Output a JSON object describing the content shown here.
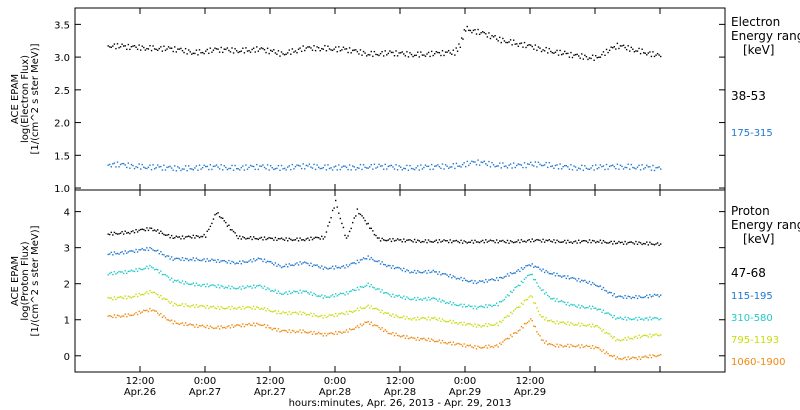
{
  "chart_data": [
    {
      "type": "scatter",
      "ylabel": [
        "ACE EPAM",
        "log(Electron Flux)",
        "[1/(cm^2 s ster MeV)]"
      ],
      "ylim": [
        0.97,
        3.75
      ],
      "yticks": [
        "1.0",
        "1.5",
        "2.0",
        "2.5",
        "3.0",
        "3.5"
      ],
      "ytick_values": [
        1.0,
        1.5,
        2.0,
        2.5,
        3.0,
        3.5
      ],
      "legend_title": [
        "Electron",
        "Energy range",
        "[keV]"
      ],
      "series": [
        {
          "name": "38-53",
          "color": "#000000",
          "x": [
            6,
            10,
            14,
            18,
            22,
            26,
            30,
            34,
            38,
            42,
            46,
            50,
            54,
            58,
            62,
            66,
            70,
            71,
            72,
            74,
            76,
            78,
            80,
            84,
            88,
            92,
            96,
            100,
            104,
            108
          ],
          "y": [
            3.19,
            3.16,
            3.15,
            3.13,
            3.08,
            3.12,
            3.11,
            3.13,
            3.06,
            3.14,
            3.15,
            3.12,
            3.06,
            3.07,
            3.05,
            3.06,
            3.08,
            3.2,
            3.45,
            3.4,
            3.35,
            3.28,
            3.25,
            3.17,
            3.1,
            3.03,
            3.0,
            3.18,
            3.11,
            3.02
          ]
        },
        {
          "name": "175-315",
          "color": "#1f77d0",
          "x": [
            6,
            10,
            14,
            18,
            22,
            26,
            30,
            34,
            38,
            42,
            46,
            50,
            54,
            58,
            62,
            66,
            70,
            74,
            78,
            82,
            86,
            90,
            94,
            98,
            102,
            106,
            108
          ],
          "y": [
            1.38,
            1.35,
            1.33,
            1.31,
            1.32,
            1.33,
            1.32,
            1.33,
            1.32,
            1.34,
            1.33,
            1.32,
            1.34,
            1.33,
            1.32,
            1.33,
            1.35,
            1.4,
            1.36,
            1.35,
            1.38,
            1.33,
            1.32,
            1.33,
            1.34,
            1.32,
            1.3
          ]
        }
      ]
    },
    {
      "type": "scatter",
      "ylabel": [
        "ACE EPAM",
        "log(Proton Flux)",
        "[1/(cm^2 s ster MeV)]"
      ],
      "ylim": [
        -0.45,
        4.6
      ],
      "yticks": [
        "0",
        "1",
        "2",
        "3",
        "4"
      ],
      "ytick_values": [
        0,
        1,
        2,
        3,
        4
      ],
      "legend_title": [
        "Proton",
        "Energy range",
        "[keV]"
      ],
      "series": [
        {
          "name": "47-68",
          "color": "#000000",
          "x": [
            6,
            10,
            14,
            18,
            20,
            24,
            26,
            30,
            34,
            38,
            42,
            46,
            48,
            50,
            52,
            56,
            60,
            64,
            68,
            72,
            76,
            80,
            84,
            88,
            92,
            96,
            100,
            104,
            108
          ],
          "y": [
            3.4,
            3.45,
            3.55,
            3.3,
            3.3,
            3.35,
            4.0,
            3.3,
            3.28,
            3.25,
            3.25,
            3.3,
            4.3,
            3.25,
            4.05,
            3.25,
            3.22,
            3.2,
            3.2,
            3.18,
            3.2,
            3.18,
            3.22,
            3.2,
            3.18,
            3.2,
            3.15,
            3.15,
            3.12
          ]
        },
        {
          "name": "115-195",
          "color": "#1f77d0",
          "x": [
            6,
            10,
            14,
            18,
            22,
            26,
            30,
            34,
            38,
            42,
            46,
            50,
            54,
            58,
            62,
            66,
            70,
            74,
            78,
            82,
            84,
            86,
            88,
            92,
            96,
            100,
            104,
            108
          ],
          "y": [
            2.85,
            2.9,
            3.0,
            2.7,
            2.7,
            2.65,
            2.6,
            2.7,
            2.5,
            2.6,
            2.45,
            2.5,
            2.75,
            2.5,
            2.35,
            2.35,
            2.2,
            2.05,
            2.15,
            2.4,
            2.55,
            2.4,
            2.3,
            2.15,
            2.0,
            1.65,
            1.65,
            1.7
          ]
        },
        {
          "name": "310-580",
          "color": "#22c9c9",
          "x": [
            6,
            10,
            14,
            18,
            22,
            26,
            30,
            34,
            38,
            42,
            46,
            50,
            54,
            58,
            62,
            66,
            70,
            74,
            78,
            82,
            84,
            86,
            88,
            92,
            96,
            100,
            104,
            108
          ],
          "y": [
            2.3,
            2.35,
            2.5,
            2.1,
            2.0,
            1.95,
            1.9,
            1.95,
            1.75,
            1.8,
            1.65,
            1.75,
            2.0,
            1.7,
            1.6,
            1.6,
            1.45,
            1.35,
            1.45,
            2.0,
            2.3,
            1.85,
            1.6,
            1.4,
            1.35,
            1.05,
            1.05,
            1.05
          ]
        },
        {
          "name": "795-1193",
          "color": "#c8dc10",
          "x": [
            6,
            10,
            14,
            18,
            22,
            26,
            30,
            34,
            38,
            42,
            46,
            50,
            54,
            58,
            62,
            66,
            70,
            74,
            78,
            82,
            84,
            86,
            88,
            92,
            96,
            100,
            104,
            108
          ],
          "y": [
            1.6,
            1.65,
            1.8,
            1.45,
            1.4,
            1.35,
            1.35,
            1.35,
            1.2,
            1.2,
            1.1,
            1.2,
            1.4,
            1.15,
            1.05,
            1.05,
            0.95,
            0.85,
            0.9,
            1.4,
            1.7,
            1.1,
            0.95,
            0.9,
            0.85,
            0.45,
            0.55,
            0.6
          ]
        },
        {
          "name": "1060-1900",
          "color": "#f08a10",
          "x": [
            6,
            10,
            14,
            18,
            22,
            26,
            30,
            34,
            38,
            42,
            46,
            50,
            54,
            58,
            62,
            66,
            70,
            74,
            78,
            82,
            84,
            86,
            88,
            92,
            96,
            100,
            104,
            108
          ],
          "y": [
            1.1,
            1.15,
            1.3,
            0.95,
            0.85,
            0.8,
            0.85,
            0.9,
            0.7,
            0.7,
            0.6,
            0.7,
            0.95,
            0.65,
            0.5,
            0.45,
            0.35,
            0.25,
            0.3,
            0.75,
            1.05,
            0.45,
            0.3,
            0.3,
            0.25,
            -0.05,
            -0.05,
            0.05
          ]
        }
      ]
    }
  ],
  "xaxis": {
    "xlim": [
      0,
      120
    ],
    "tick_values": [
      12,
      24,
      36,
      48,
      60,
      72,
      84,
      96,
      108,
      120
    ],
    "label_values": [
      12,
      24,
      36,
      48,
      60,
      72,
      84,
      96,
      108
    ],
    "tick_time": [
      "12:00",
      "0:00",
      "12:00",
      "0:00",
      "12:00",
      "0:00",
      "12:00"
    ],
    "tick_time_values": [
      12,
      36,
      60,
      84,
      108,
      132,
      156
    ],
    "labels_top": [
      "12:00",
      "0:00",
      "12:00",
      "0:00",
      "12:00",
      "0:00",
      "12:00"
    ],
    "labels_bottom": [
      "Apr.26",
      "Apr.27",
      "Apr.27",
      "Apr.28",
      "Apr.28",
      "Apr.29",
      "Apr.29"
    ],
    "title": "hours:minutes, Apr. 26, 2013 - Apr. 29, 2013"
  }
}
